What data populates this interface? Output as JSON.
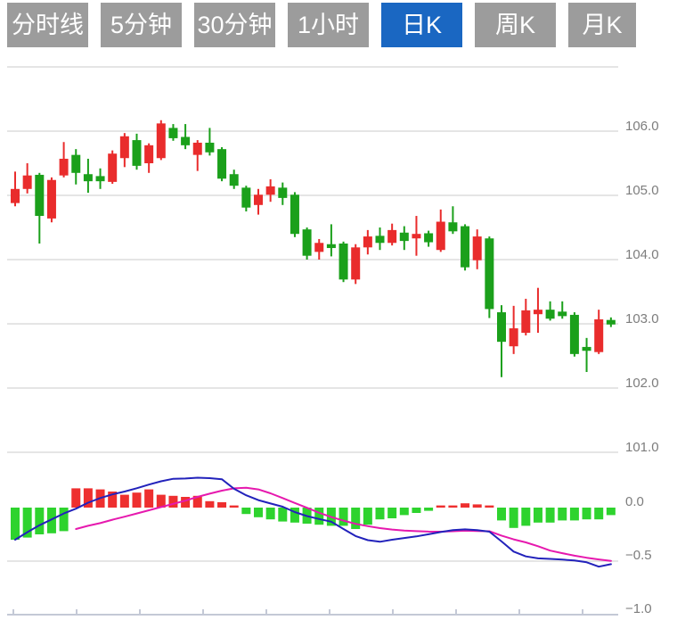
{
  "toolbar": {
    "buttons": [
      {
        "label": "分时线",
        "active": false
      },
      {
        "label": "5分钟",
        "active": false
      },
      {
        "label": "30分钟",
        "active": false
      },
      {
        "label": "1小时",
        "active": false
      },
      {
        "label": "日K",
        "active": true
      },
      {
        "label": "周K",
        "active": false
      },
      {
        "label": "月K",
        "active": false
      }
    ]
  },
  "colors": {
    "button_bg": "#9c9c9c",
    "button_active_bg": "#1a67c2",
    "button_text": "#ffffff",
    "candle_up": "#e92c2c",
    "candle_down": "#1ba01b",
    "macd_bar_up": "#ee2f2f",
    "macd_bar_down": "#2ed32e",
    "dif_line": "#2222bb",
    "dea_line": "#e619ae",
    "gridline": "#e5e5e5",
    "bottom_axis": "#c4c9d6",
    "axis_text": "#7d7d7d",
    "background": "#ffffff"
  },
  "chart_data": {
    "type": "candlestick",
    "title": "",
    "legend_position": "none",
    "grid": true,
    "price_panel": {
      "ylim": [
        100.9,
        107.1
      ],
      "y_grid_values": [
        107,
        106,
        105,
        104,
        103,
        102,
        101
      ],
      "y_ticks": [
        {
          "label": "106.0",
          "value": 106
        },
        {
          "label": "105.0",
          "value": 105
        },
        {
          "label": "104.0",
          "value": 104
        },
        {
          "label": "103.0",
          "value": 103
        },
        {
          "label": "102.0",
          "value": 102
        },
        {
          "label": "101.0",
          "value": 101
        }
      ],
      "candle_columns": [
        "open",
        "close",
        "high",
        "low"
      ],
      "candles": [
        [
          104.88,
          105.1,
          105.37,
          104.83
        ],
        [
          105.1,
          105.31,
          105.5,
          105.03
        ],
        [
          105.32,
          104.68,
          105.35,
          104.25
        ],
        [
          104.64,
          105.24,
          105.28,
          104.58
        ],
        [
          105.31,
          105.57,
          105.83,
          105.28
        ],
        [
          105.63,
          105.35,
          105.72,
          105.17
        ],
        [
          105.33,
          105.22,
          105.57,
          105.04
        ],
        [
          105.3,
          105.22,
          105.42,
          105.1
        ],
        [
          105.21,
          105.65,
          105.7,
          105.18
        ],
        [
          105.58,
          105.92,
          105.97,
          105.44
        ],
        [
          105.86,
          105.46,
          105.96,
          105.4
        ],
        [
          105.5,
          105.78,
          105.81,
          105.35
        ],
        [
          105.58,
          106.12,
          106.17,
          105.55
        ],
        [
          106.05,
          105.89,
          106.11,
          105.85
        ],
        [
          105.91,
          105.78,
          106.11,
          105.72
        ],
        [
          105.63,
          105.82,
          105.86,
          105.38
        ],
        [
          105.82,
          105.67,
          106.05,
          105.62
        ],
        [
          105.72,
          105.26,
          105.75,
          105.22
        ],
        [
          105.33,
          105.15,
          105.4,
          105.1
        ],
        [
          105.12,
          104.81,
          105.15,
          104.75
        ],
        [
          104.85,
          105.01,
          105.1,
          104.7
        ],
        [
          105.01,
          105.14,
          105.25,
          104.9
        ],
        [
          105.12,
          104.96,
          105.2,
          104.85
        ],
        [
          105.01,
          104.4,
          105.05,
          104.35
        ],
        [
          104.47,
          104.06,
          104.5,
          104.0
        ],
        [
          104.12,
          104.26,
          104.32,
          104.0
        ],
        [
          104.24,
          104.18,
          104.55,
          104.05
        ],
        [
          104.25,
          103.69,
          104.28,
          103.65
        ],
        [
          103.69,
          104.19,
          104.24,
          103.62
        ],
        [
          104.19,
          104.36,
          104.46,
          104.08
        ],
        [
          104.37,
          104.26,
          104.5,
          104.15
        ],
        [
          104.26,
          104.46,
          104.56,
          104.22
        ],
        [
          104.42,
          104.29,
          104.52,
          104.15
        ],
        [
          104.33,
          104.4,
          104.68,
          104.06
        ],
        [
          104.41,
          104.27,
          104.45,
          104.2
        ],
        [
          104.15,
          104.59,
          104.78,
          104.12
        ],
        [
          104.58,
          104.44,
          104.83,
          104.4
        ],
        [
          104.52,
          103.88,
          104.55,
          103.83
        ],
        [
          103.99,
          104.36,
          104.47,
          103.85
        ],
        [
          104.33,
          103.23,
          104.36,
          103.09
        ],
        [
          103.18,
          102.72,
          103.29,
          102.17
        ],
        [
          102.65,
          102.93,
          103.28,
          102.53
        ],
        [
          102.86,
          103.21,
          103.39,
          102.82
        ],
        [
          103.15,
          103.22,
          103.56,
          102.86
        ],
        [
          103.22,
          103.08,
          103.35,
          103.05
        ],
        [
          103.19,
          103.12,
          103.35,
          103.08
        ],
        [
          103.14,
          102.53,
          103.18,
          102.49
        ],
        [
          102.64,
          102.58,
          102.78,
          102.25
        ],
        [
          102.56,
          103.07,
          103.22,
          102.53
        ],
        [
          103.06,
          102.99,
          103.1,
          102.95
        ]
      ]
    },
    "macd_panel": {
      "ylim": [
        -1.0,
        0.35
      ],
      "y_grid_values": [
        -0.5
      ],
      "y_ticks": [
        {
          "label": "0.0",
          "value": 0
        },
        {
          "label": "-0.5",
          "value": -0.5
        },
        {
          "label": "-1.0",
          "value": -1.0
        }
      ],
      "histogram": [
        -0.3,
        -0.28,
        -0.25,
        -0.24,
        -0.22,
        0.18,
        0.18,
        0.17,
        0.15,
        0.12,
        0.14,
        0.17,
        0.12,
        0.11,
        0.1,
        0.11,
        0.06,
        0.05,
        0.02,
        -0.06,
        -0.09,
        -0.11,
        -0.13,
        -0.14,
        -0.15,
        -0.16,
        -0.17,
        -0.17,
        -0.2,
        -0.16,
        -0.11,
        -0.1,
        -0.07,
        -0.05,
        -0.03,
        0.02,
        0.02,
        0.04,
        0.03,
        0.02,
        -0.12,
        -0.19,
        -0.17,
        -0.14,
        -0.14,
        -0.12,
        -0.12,
        -0.11,
        -0.11,
        -0.07
      ],
      "series": [
        {
          "name": "DIF",
          "color_key": "dif_line",
          "start_index": 0,
          "values": [
            -0.3,
            -0.23,
            -0.165,
            -0.11,
            -0.055,
            -0.01,
            0.046,
            0.089,
            0.123,
            0.15,
            0.181,
            0.215,
            0.246,
            0.269,
            0.272,
            0.279,
            0.275,
            0.265,
            0.176,
            0.115,
            0.07,
            0.038,
            0.008,
            -0.042,
            -0.079,
            -0.107,
            -0.132,
            -0.2,
            -0.266,
            -0.304,
            -0.319,
            -0.3,
            -0.284,
            -0.269,
            -0.249,
            -0.228,
            -0.211,
            -0.203,
            -0.21,
            -0.225,
            -0.316,
            -0.411,
            -0.456,
            -0.474,
            -0.479,
            -0.486,
            -0.494,
            -0.511,
            -0.552,
            -0.528
          ]
        },
        {
          "name": "DEA",
          "color_key": "dea_line",
          "start_index": 5,
          "values": [
            -0.2,
            -0.17,
            -0.145,
            -0.113,
            -0.085,
            -0.055,
            -0.025,
            0.005,
            0.035,
            0.065,
            0.1,
            0.13,
            0.158,
            0.18,
            0.185,
            0.17,
            0.133,
            0.089,
            0.043,
            -0.002,
            -0.048,
            -0.088,
            -0.122,
            -0.152,
            -0.173,
            -0.192,
            -0.205,
            -0.215,
            -0.22,
            -0.224,
            -0.225,
            -0.221,
            -0.216,
            -0.218,
            -0.221,
            -0.262,
            -0.297,
            -0.325,
            -0.361,
            -0.402,
            -0.426,
            -0.449,
            -0.468,
            -0.484,
            -0.498
          ]
        }
      ]
    }
  }
}
